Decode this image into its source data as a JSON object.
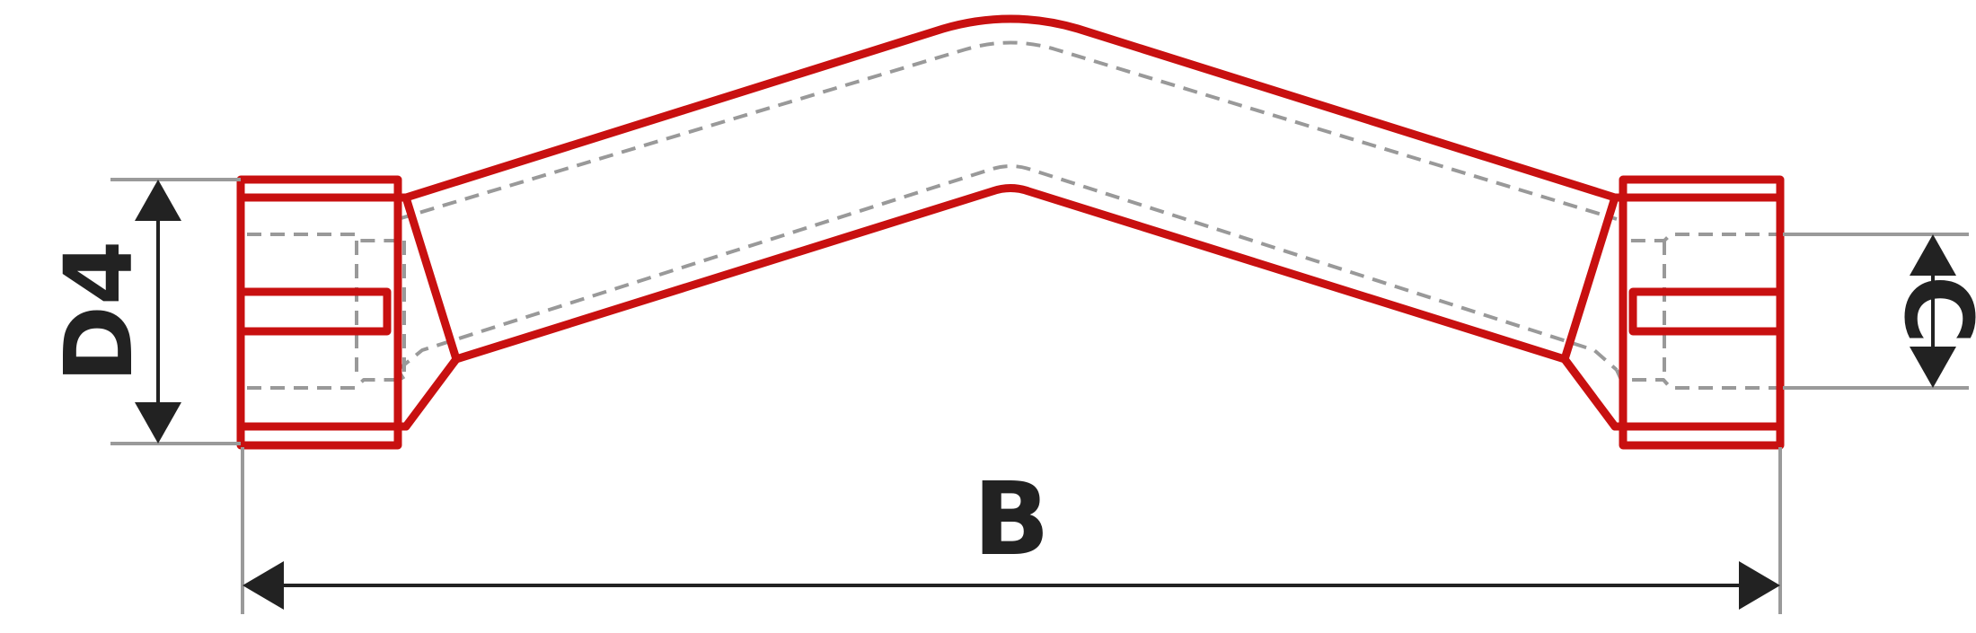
{
  "dimensions": {
    "d4": "D4",
    "b": "B",
    "c": "C"
  },
  "colors": {
    "part_outline": "#c81010",
    "hidden_line": "#999999",
    "extension_line": "#9a9a9a",
    "dimension_line": "#222222",
    "background": "#ffffff"
  }
}
